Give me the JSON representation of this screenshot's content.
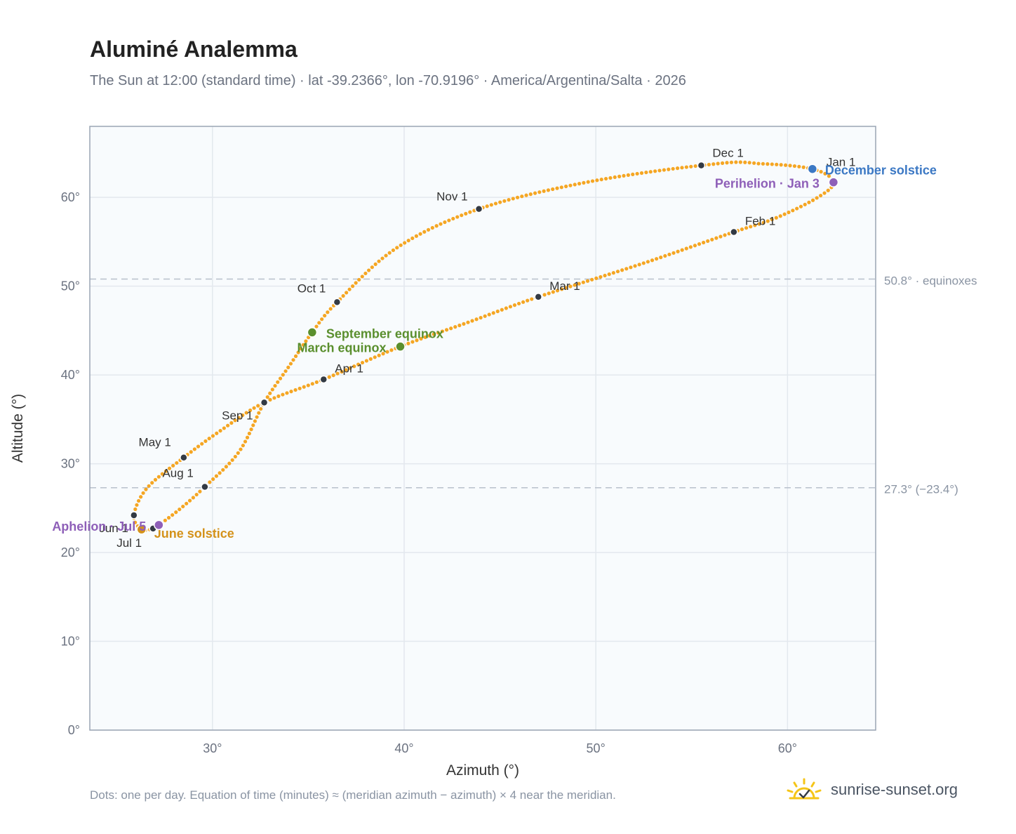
{
  "title": "Aluminé Analemma",
  "subtitle": "The Sun at 12:00 (standard time) · lat -39.2366°, lon -70.9196° · America/Argentina/Salta · 2026",
  "footnote": "Dots: one per day. Equation of time (minutes) ≈ (meridian azimuth − azimuth) × 4 near the meridian.",
  "brand": {
    "name": "sunrise-sunset.org",
    "logo_icon": "sun-check-icon",
    "logo_color": "#f5c518"
  },
  "colors": {
    "curve": "#f5a623",
    "month_dot": "#333a44",
    "equinox": "#5a8f2e",
    "solstice_dec": "#3b78c4",
    "solstice_jun": "#d4921a",
    "apsis": "#8e5fb8",
    "ref_line": "#b8c0cc"
  },
  "chart_data": {
    "type": "scatter",
    "title": "Aluminé Analemma",
    "xlabel": "Azimuth (°)",
    "ylabel": "Altitude (°)",
    "xlim": [
      23.6,
      64.6
    ],
    "ylim": [
      0,
      68
    ],
    "x_ticks": [
      {
        "v": 30,
        "label": "30°"
      },
      {
        "v": 40,
        "label": "40°"
      },
      {
        "v": 50,
        "label": "50°"
      },
      {
        "v": 60,
        "label": "60°"
      }
    ],
    "y_ticks": [
      {
        "v": 0,
        "label": "0°"
      },
      {
        "v": 10,
        "label": "10°"
      },
      {
        "v": 20,
        "label": "20°"
      },
      {
        "v": 30,
        "label": "30°"
      },
      {
        "v": 40,
        "label": "40°"
      },
      {
        "v": 50,
        "label": "50°"
      },
      {
        "v": 60,
        "label": "60°"
      }
    ],
    "grid": true,
    "ref_lines": [
      {
        "y": 50.8,
        "label": "50.8° · equinoxes"
      },
      {
        "y": 27.3,
        "label": "27.3° (−23.4°)"
      }
    ],
    "months": [
      {
        "label": "Jan 1",
        "az": 61.3,
        "alt": 63.2
      },
      {
        "label": "Feb 1",
        "az": 57.2,
        "alt": 56.1
      },
      {
        "label": "Mar 1",
        "az": 47.0,
        "alt": 48.8
      },
      {
        "label": "Apr 1",
        "az": 35.8,
        "alt": 39.5
      },
      {
        "label": "May 1",
        "az": 28.5,
        "alt": 30.7
      },
      {
        "label": "Jun 1",
        "az": 25.9,
        "alt": 24.2
      },
      {
        "label": "Jul 1",
        "az": 26.9,
        "alt": 22.7
      },
      {
        "label": "Aug 1",
        "az": 29.6,
        "alt": 27.4
      },
      {
        "label": "Sep 1",
        "az": 32.7,
        "alt": 36.9
      },
      {
        "label": "Oct 1",
        "az": 36.5,
        "alt": 48.2
      },
      {
        "label": "Nov 1",
        "az": 43.9,
        "alt": 58.7
      },
      {
        "label": "Dec 1",
        "az": 55.5,
        "alt": 63.6
      }
    ],
    "events": [
      {
        "label": "December solstice",
        "az": 61.3,
        "alt": 63.2,
        "color": "#3b78c4"
      },
      {
        "label": "Perihelion · Jan 3",
        "az": 62.4,
        "alt": 61.7,
        "color": "#8e5fb8"
      },
      {
        "label": "September equinox",
        "az": 35.2,
        "alt": 44.8,
        "color": "#5a8f2e"
      },
      {
        "label": "March equinox",
        "az": 39.8,
        "alt": 43.2,
        "color": "#5a8f2e"
      },
      {
        "label": "June solstice",
        "az": 26.3,
        "alt": 22.6,
        "color": "#d4921a"
      },
      {
        "label": "Aphelion · Jul 5",
        "az": 27.2,
        "alt": 23.1,
        "color": "#8e5fb8"
      }
    ],
    "curve_anchors": [
      [
        61.3,
        63.2
      ],
      [
        62.4,
        61.7
      ],
      [
        61.5,
        59.9
      ],
      [
        59.3,
        57.6
      ],
      [
        57.2,
        56.1
      ],
      [
        52.5,
        52.6
      ],
      [
        47.0,
        48.8
      ],
      [
        43.3,
        45.9
      ],
      [
        39.8,
        43.2
      ],
      [
        35.8,
        39.5
      ],
      [
        32.7,
        36.9
      ],
      [
        30.4,
        33.7
      ],
      [
        28.5,
        30.7
      ],
      [
        26.6,
        27.3
      ],
      [
        25.9,
        24.2
      ],
      [
        26.3,
        22.6
      ],
      [
        26.9,
        22.7
      ],
      [
        27.2,
        23.1
      ],
      [
        28.3,
        24.9
      ],
      [
        29.6,
        27.4
      ],
      [
        31.4,
        31.4
      ],
      [
        32.7,
        36.9
      ],
      [
        34.0,
        41.0
      ],
      [
        35.2,
        44.8
      ],
      [
        36.5,
        48.2
      ],
      [
        39.6,
        54.3
      ],
      [
        43.9,
        58.7
      ],
      [
        49.5,
        61.7
      ],
      [
        55.5,
        63.6
      ],
      [
        58.5,
        63.8
      ],
      [
        61.3,
        63.2
      ]
    ],
    "daily_count": 365
  }
}
